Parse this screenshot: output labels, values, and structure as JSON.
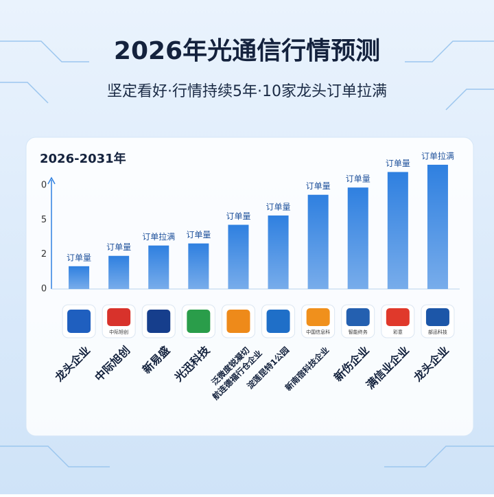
{
  "chart_data": {
    "type": "bar",
    "title": "2026年光通信行情预测",
    "subtitle": "坚定看好·行情持续5年·10家龙头订单拉满",
    "panel_label": "2026-2031年",
    "axis_labels": [
      "0",
      "5",
      "2",
      "0"
    ],
    "categories": [
      "龙头企业",
      "中际旭创",
      "新易盛",
      "光迅科技",
      "泛微度锐凝切 航连德福行仓企业",
      "淀莲昆特1公园",
      "新南宿科技企业",
      "新伤企业",
      "满信业企业",
      "龙头企业"
    ],
    "values": [
      22,
      32,
      42,
      44,
      62,
      71,
      91,
      98,
      113,
      120
    ],
    "value_labels": [
      "订单量",
      "订单量",
      "订单拉满",
      "订单量",
      "订单量",
      "订单量",
      "订单量",
      "订单量",
      "订单量",
      "订单拉满"
    ],
    "ylim": [
      0,
      120
    ],
    "color": "#2f80e0",
    "logos": [
      {
        "color": "#1f5fbf"
      },
      {
        "color": "#d8322b",
        "text": "中际旭创"
      },
      {
        "color": "#163e8c"
      },
      {
        "color": "#2a9d4a"
      },
      {
        "color": "#ee8a1a"
      },
      {
        "color": "#1f6fc8"
      },
      {
        "color": "#f0901c",
        "text": "中国信息科"
      },
      {
        "color": "#2460b0",
        "text": "智能终务"
      },
      {
        "color": "#e0392b",
        "text": "彩意"
      },
      {
        "color": "#1c56a8",
        "text": "部迅科技"
      }
    ]
  }
}
